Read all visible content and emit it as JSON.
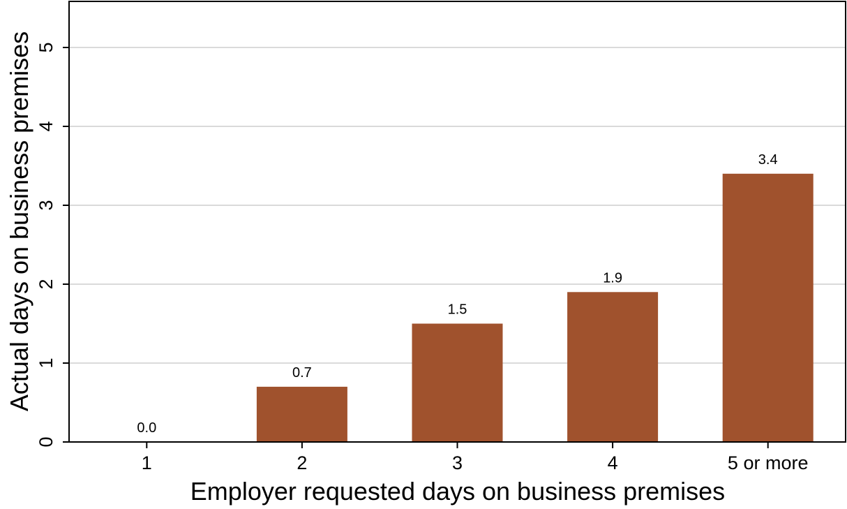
{
  "chart_data": {
    "type": "bar",
    "categories": [
      "1",
      "2",
      "3",
      "4",
      "5 or more"
    ],
    "values": [
      0.0,
      0.7,
      1.5,
      1.9,
      3.4
    ],
    "data_labels": [
      "0.0",
      "0.7",
      "1.5",
      "1.9",
      "3.4"
    ],
    "title": "",
    "xlabel": "Employer requested days on business premises",
    "ylabel": "Actual  days on business premises",
    "ylim": [
      0,
      5.6
    ],
    "yticks": [
      0,
      1,
      2,
      3,
      4,
      5
    ],
    "ytick_labels": [
      "0",
      "1",
      "2",
      "3",
      "4",
      "5"
    ],
    "grid": "horizontal",
    "bar_color": "#A0522D",
    "grid_color": "#DADADA",
    "legend": "none"
  }
}
